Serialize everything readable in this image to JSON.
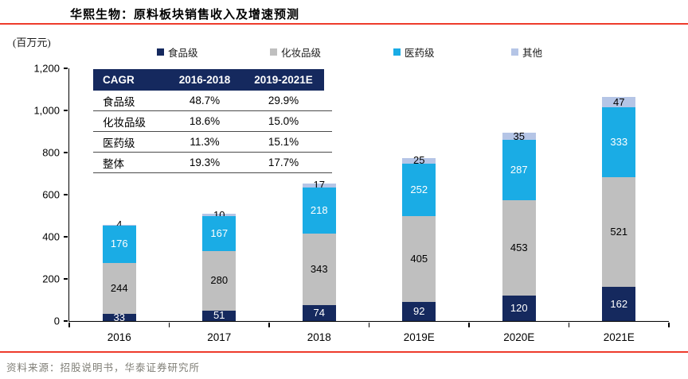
{
  "header": {
    "title": "华熙生物：原料板块销售收入及增速预测"
  },
  "unit_label": "(百万元)",
  "colors": {
    "food_grade": "#15295E",
    "cosmetic_grade": "#BFBFBF",
    "pharma_grade": "#1AACE5",
    "other": "#B5C5E6",
    "accent_red": "#EE3B2B",
    "table_header_bg": "#15295E"
  },
  "legend": [
    {
      "label": "食品级",
      "color": "#15295E"
    },
    {
      "label": "化妆品级",
      "color": "#BFBFBF"
    },
    {
      "label": "医药级",
      "color": "#1AACE5"
    },
    {
      "label": "其他",
      "color": "#B5C5E6"
    }
  ],
  "cagr_table": {
    "headers": [
      "CAGR",
      "2016-2018",
      "2019-2021E"
    ],
    "rows": [
      [
        "食品级",
        "48.7%",
        "29.9%"
      ],
      [
        "化妆品级",
        "18.6%",
        "15.0%"
      ],
      [
        "医药级",
        "11.3%",
        "15.1%"
      ],
      [
        "整体",
        "19.3%",
        "17.7%"
      ]
    ]
  },
  "chart_data": {
    "type": "bar",
    "stacked": true,
    "title": "华熙生物：原料板块销售收入及增速预测",
    "ylabel": "(百万元)",
    "ylim": [
      0,
      1200
    ],
    "ytick_step": 200,
    "yticks": [
      "0",
      "200",
      "400",
      "600",
      "800",
      "1,000",
      "1,200"
    ],
    "grid": false,
    "legend_position": "top",
    "categories": [
      "2016",
      "2017",
      "2018",
      "2019E",
      "2020E",
      "2021E"
    ],
    "series": [
      {
        "name": "食品级",
        "color": "#15295E",
        "label_color": "#ffffff",
        "values": [
          33,
          51,
          74,
          92,
          120,
          162
        ]
      },
      {
        "name": "化妆品级",
        "color": "#BFBFBF",
        "label_color": "#000000",
        "values": [
          244,
          280,
          343,
          405,
          453,
          521
        ]
      },
      {
        "name": "医药级",
        "color": "#1AACE5",
        "label_color": "#ffffff",
        "values": [
          176,
          167,
          218,
          252,
          287,
          333
        ]
      },
      {
        "name": "其他",
        "color": "#B5C5E6",
        "label_color": "#000000",
        "values": [
          4,
          10,
          17,
          25,
          35,
          47
        ]
      }
    ]
  },
  "footer": {
    "source": "资料来源：招股说明书，华泰证券研究所"
  }
}
